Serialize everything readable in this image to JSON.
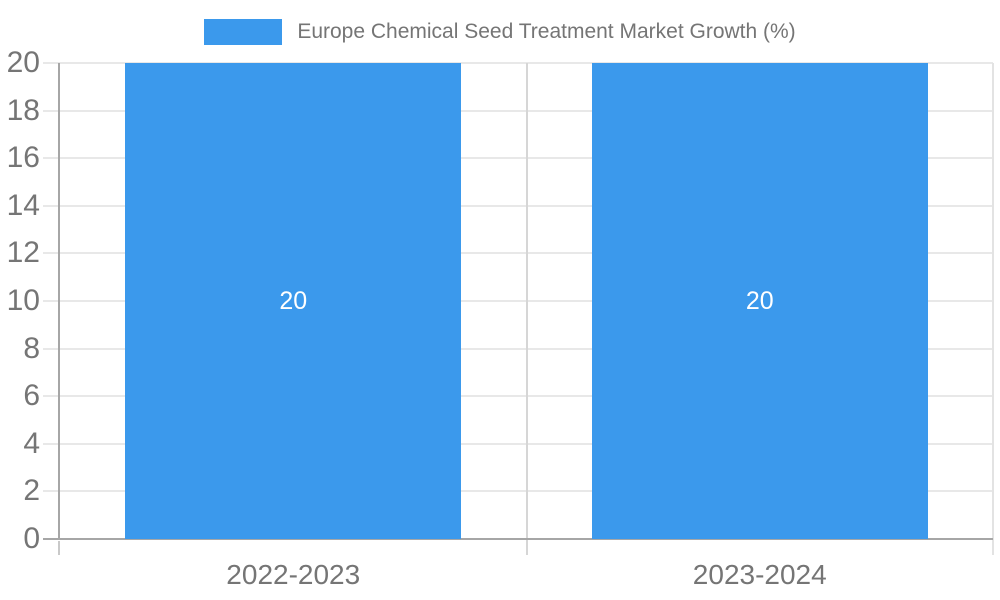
{
  "chart_data": {
    "type": "bar",
    "title": "Europe Chemical Seed Treatment Market Growth (%)",
    "categories": [
      "2022-2023",
      "2023-2024"
    ],
    "values": [
      20,
      20
    ],
    "bar_value_labels": [
      "20",
      "20"
    ],
    "xlabel": "",
    "ylabel": "",
    "ylim": [
      0,
      20
    ],
    "yticks": [
      0,
      2,
      4,
      6,
      8,
      10,
      12,
      14,
      16,
      18,
      20
    ],
    "grid": true,
    "legend_position": "top-center",
    "legend_entries": [
      "Europe Chemical Seed Treatment Market Growth (%)"
    ],
    "colors": {
      "bar": "#3B99EC",
      "label_text": "#757575",
      "bar_value_text": "#FFFFFF",
      "gridline": "#E8E8E8",
      "axis_line": "#A6A6A6",
      "tick_extension": "#C9C9C9",
      "category_separator": "#D6D6D6",
      "plot_right_edge": "#E3E3E3",
      "background": "#FFFFFF"
    }
  }
}
